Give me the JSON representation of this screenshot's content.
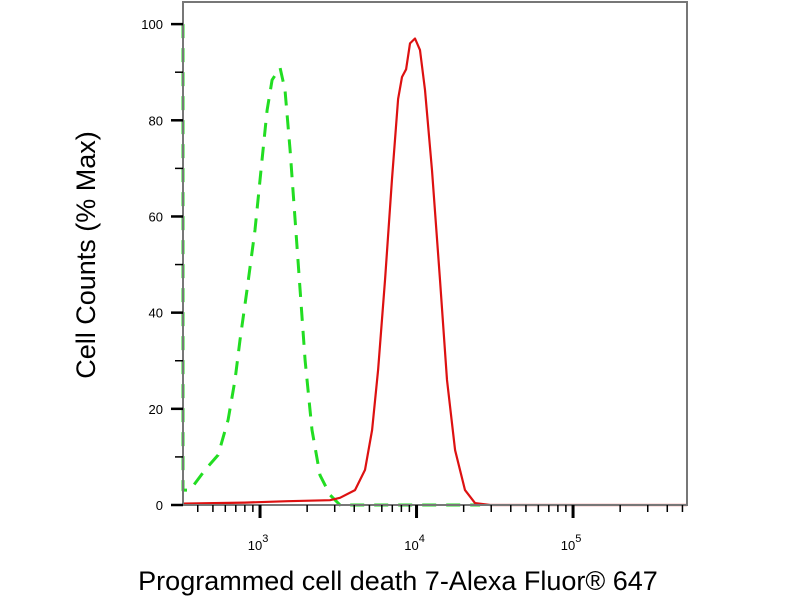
{
  "chart_data": {
    "type": "line",
    "title": "",
    "xlabel": "Programmed cell death 7-Alexa Fluor® 647",
    "ylabel": "Cell Counts (% Max)",
    "x_scale": "log",
    "xlim": [
      322,
      534600
    ],
    "ylim": [
      0,
      104.6
    ],
    "grid": false,
    "legend": "none",
    "y_ticks": [
      0,
      20,
      40,
      60,
      80,
      100
    ],
    "x_ticks": [
      {
        "value": 1000,
        "base": "10",
        "exp": "3"
      },
      {
        "value": 10000,
        "base": "10",
        "exp": "4"
      },
      {
        "value": 100000,
        "base": "10",
        "exp": "5"
      }
    ],
    "series": [
      {
        "color": "#22dd22",
        "style": "dashed",
        "x": [
          322,
          322,
          327,
          357,
          446,
          540,
          625,
          692,
          745,
          826,
          929,
          1030,
          1109,
          1194,
          1343,
          1445,
          1556,
          1675,
          1803,
          1941,
          2148,
          2415,
          2800,
          3243,
          25470
        ],
        "y": [
          100,
          3.1,
          3.1,
          3.1,
          7.3,
          10.4,
          17.7,
          26,
          34.3,
          44.7,
          57.2,
          71.7,
          82.1,
          88.4,
          90.9,
          86.3,
          73.8,
          59.3,
          44.7,
          30.1,
          15.6,
          6.2,
          2.1,
          0,
          0
        ]
      },
      {
        "color": "#dd1111",
        "style": "solid",
        "x": [
          322,
          800,
          1500,
          2800,
          3243,
          4046,
          4688,
          5200,
          5680,
          6295,
          6970,
          7620,
          8077,
          8570,
          9080,
          9770,
          10520,
          11320,
          12560,
          14130,
          15660,
          17630,
          20400,
          23650,
          29520,
          534600
        ],
        "y": [
          0.3,
          0.5,
          0.8,
          1,
          1.5,
          3.1,
          7.3,
          15.6,
          28.1,
          47.0,
          67.8,
          84.4,
          89.0,
          90.6,
          96.0,
          97.0,
          94.6,
          86.3,
          69.6,
          46.8,
          26.0,
          11.4,
          3.1,
          0.4,
          0,
          0
        ]
      }
    ]
  }
}
